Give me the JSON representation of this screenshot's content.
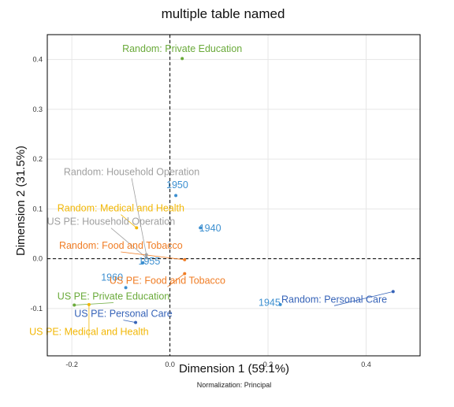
{
  "chart_data": {
    "type": "scatter",
    "title": "multiple table named",
    "xlabel": "Dimension 1 (59.1%)",
    "ylabel": "Dimension 2 (31.5%)",
    "footnote": "Normalization: Principal",
    "xlim": [
      -0.25,
      0.51
    ],
    "ylim": [
      -0.195,
      0.45
    ],
    "xticks": [
      -0.2,
      0,
      0.2,
      0.4
    ],
    "xtick_labels": [
      "-0.2",
      "0.0",
      "0.2",
      "0.4"
    ],
    "yticks": [
      -0.1,
      0,
      0.1,
      0.2,
      0.3,
      0.4
    ],
    "ytick_labels": [
      "-0.1",
      "0.0",
      "0.1",
      "0.2",
      "0.3",
      "0.4"
    ],
    "grid": true,
    "zero_lines": true,
    "points": [
      {
        "label": "Random: Private Education",
        "x": 0.025,
        "y": 0.402,
        "color": "#6aaa3a",
        "lx": 0.025,
        "ly": 0.415,
        "leader": false
      },
      {
        "label": "Random: Household Operation",
        "x": -0.048,
        "y": 0.008,
        "color": "#a0a0a0",
        "lx": -0.078,
        "ly": 0.168,
        "leader": true
      },
      {
        "label": "1950",
        "x": 0.012,
        "y": 0.127,
        "color": "#3c8fd0",
        "lx": 0.015,
        "ly": 0.142,
        "leader": false
      },
      {
        "label": "Random: Medical and Health",
        "x": -0.068,
        "y": 0.062,
        "color": "#f2b705",
        "lx": -0.1,
        "ly": 0.095,
        "leader": true
      },
      {
        "label": "US PE: Household Operation",
        "x": -0.048,
        "y": 0.002,
        "color": "#a0a0a0",
        "lx": -0.12,
        "ly": 0.068,
        "leader": true
      },
      {
        "label": "1940",
        "x": 0.062,
        "y": 0.062,
        "color": "#3c8fd0",
        "lx": 0.082,
        "ly": 0.055,
        "leader": false
      },
      {
        "label": "Random: Food and Tobacco",
        "x": 0.03,
        "y": -0.002,
        "color": "#f07d25",
        "lx": -0.1,
        "ly": 0.02,
        "leader": true
      },
      {
        "label": "1955",
        "x": -0.055,
        "y": -0.008,
        "color": "#3c8fd0",
        "lx": -0.042,
        "ly": -0.012,
        "leader": false
      },
      {
        "label": "1960",
        "x": -0.09,
        "y": -0.058,
        "color": "#3c8fd0",
        "lx": -0.118,
        "ly": -0.044,
        "leader": false
      },
      {
        "label": "US PE: Food and Tobacco",
        "x": 0.03,
        "y": -0.03,
        "color": "#f07d25",
        "lx": -0.005,
        "ly": -0.05,
        "leader": true
      },
      {
        "label": "US PE: Private Education",
        "x": -0.195,
        "y": -0.093,
        "color": "#6aaa3a",
        "lx": -0.115,
        "ly": -0.082,
        "leader": true
      },
      {
        "label": "Random: Personal Care",
        "x": 0.455,
        "y": -0.066,
        "color": "#3663b8",
        "lx": 0.335,
        "ly": -0.088,
        "leader": true
      },
      {
        "label": "1945",
        "x": 0.225,
        "y": -0.092,
        "color": "#3c8fd0",
        "lx": 0.203,
        "ly": -0.095,
        "leader": false
      },
      {
        "label": "US PE: Personal Care",
        "x": -0.07,
        "y": -0.128,
        "color": "#3663b8",
        "lx": -0.095,
        "ly": -0.117,
        "leader": true
      },
      {
        "label": "US PE: Medical and Health",
        "x": -0.165,
        "y": -0.092,
        "color": "#f2b705",
        "lx": -0.165,
        "ly": -0.153,
        "leader": true
      }
    ]
  }
}
